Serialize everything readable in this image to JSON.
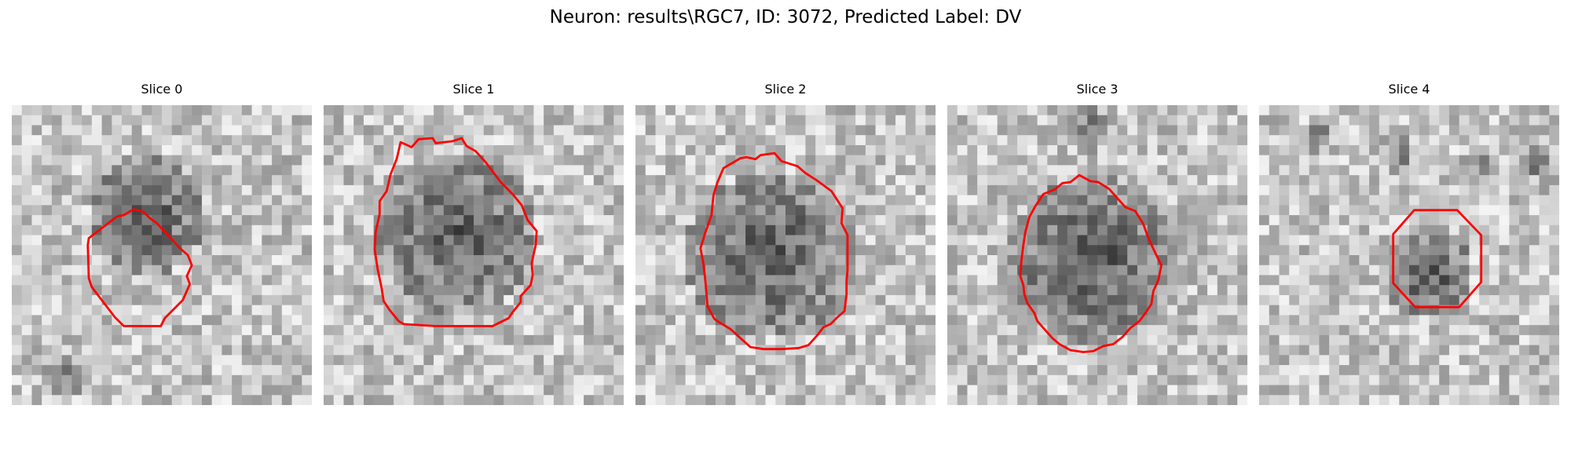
{
  "figure": {
    "title": "Neuron: results\\RGC7, ID: 3072, Predicted Label: DV"
  },
  "slices": [
    {
      "title": "Slice 0",
      "contour_color": "#ff0000"
    },
    {
      "title": "Slice 1",
      "contour_color": "#ff0000"
    },
    {
      "title": "Slice 2",
      "contour_color": "#ff0000"
    },
    {
      "title": "Slice 3",
      "contour_color": "#ff0000"
    },
    {
      "title": "Slice 4",
      "contour_color": "#ff0000"
    }
  ]
}
